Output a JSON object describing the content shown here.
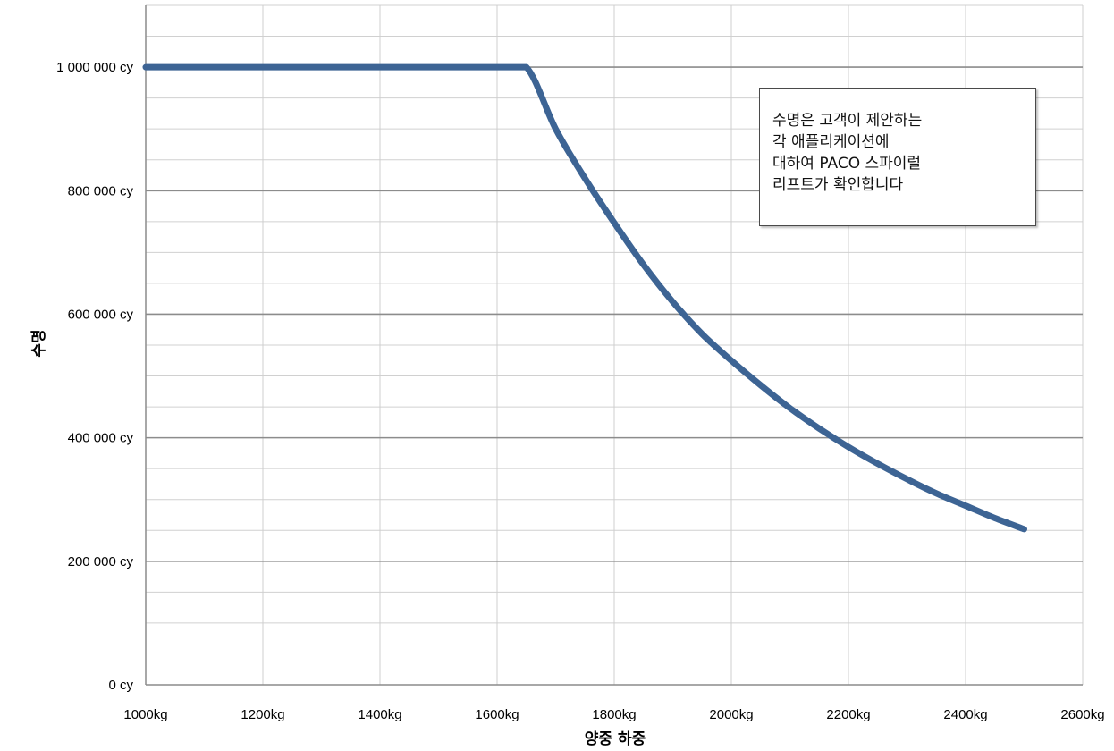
{
  "chart_data": {
    "type": "line",
    "xlabel": "양중 하중",
    "ylabel": "수명",
    "x_ticks": [
      "1000kg",
      "1200kg",
      "1400kg",
      "1600kg",
      "1800kg",
      "2000kg",
      "2200kg",
      "2400kg",
      "2600kg"
    ],
    "y_ticks": [
      "0 cy",
      "200 000 cy",
      "400 000 cy",
      "600 000 cy",
      "800 000 cy",
      "1 000 000 cy"
    ],
    "xlim": [
      1000,
      2600
    ],
    "ylim": [
      0,
      1100000
    ],
    "grid": true,
    "series": [
      {
        "color": "#3d6494",
        "x": [
          1000,
          1200,
          1400,
          1600,
          1650,
          1700,
          1750,
          1800,
          1850,
          1900,
          1950,
          2000,
          2050,
          2100,
          2150,
          2200,
          2250,
          2300,
          2350,
          2400,
          2450,
          2500
        ],
        "y": [
          1000000,
          1000000,
          1000000,
          1000000,
          1000000,
          900000,
          820000,
          748000,
          680000,
          620000,
          568000,
          525000,
          485000,
          448000,
          415000,
          385000,
          358000,
          333000,
          310000,
          290000,
          270000,
          252000
        ]
      }
    ]
  },
  "annotation": {
    "lines": [
      "수명은 고객이 제안하는",
      "각 애플리케이션에",
      "대하여 PACO 스파이럴",
      "리프트가 확인합니다"
    ]
  }
}
